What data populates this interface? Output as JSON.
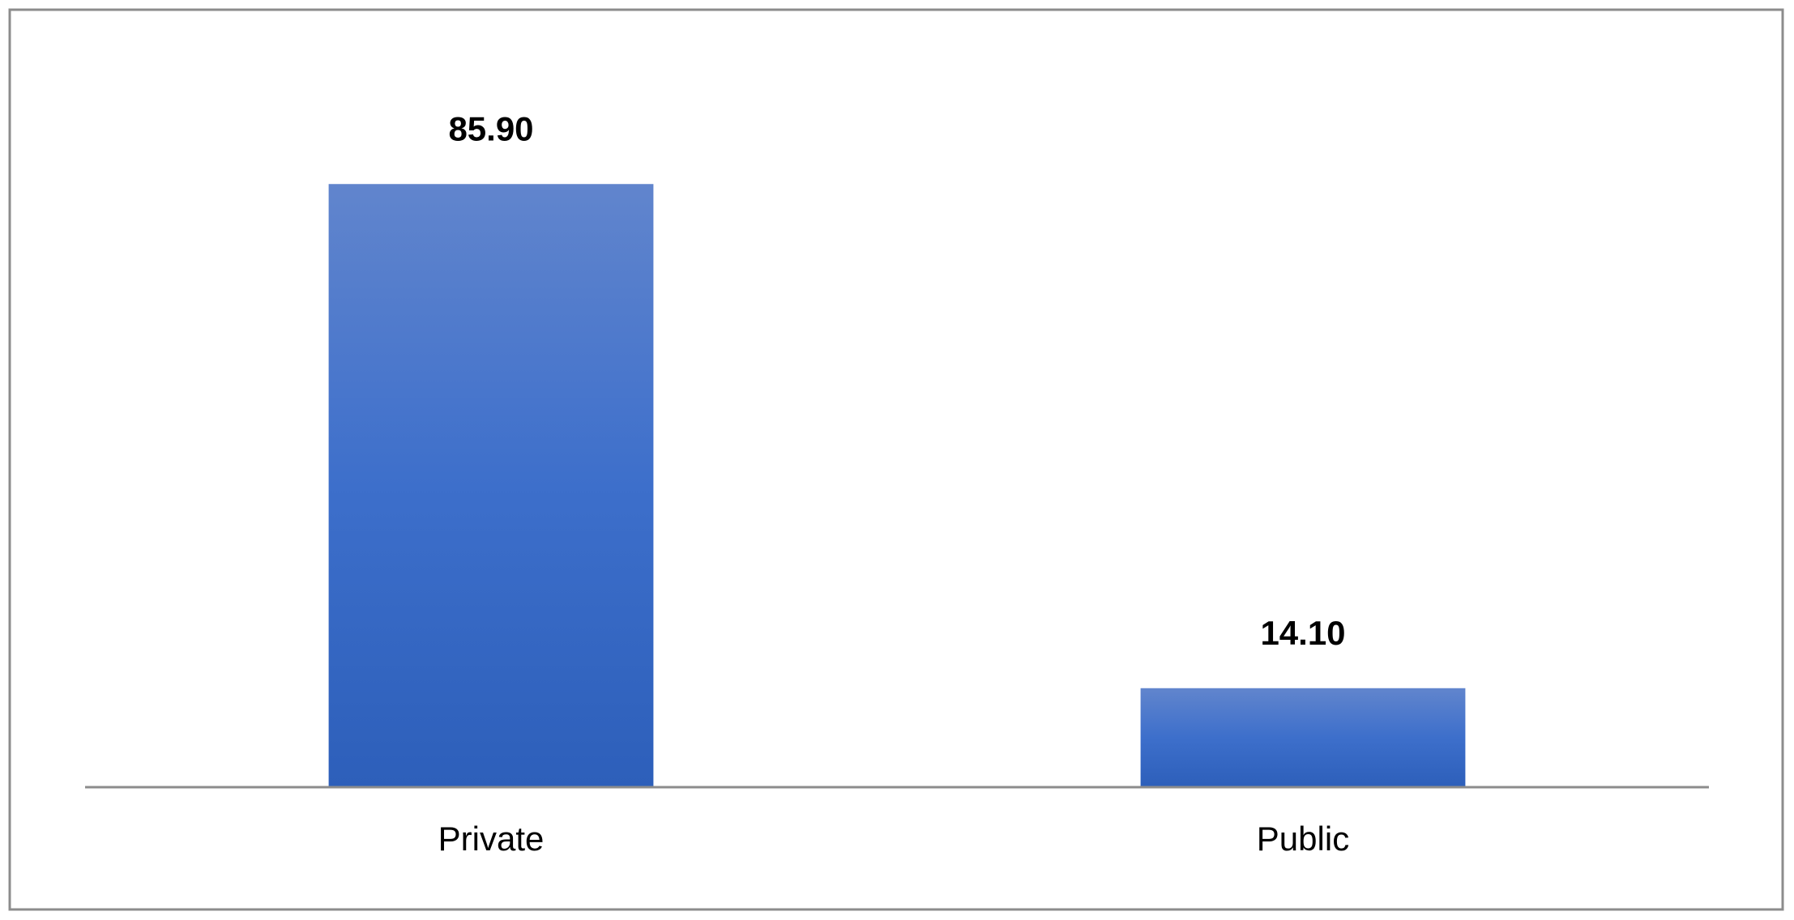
{
  "chart_data": {
    "type": "bar",
    "categories": [
      "Private",
      "Public"
    ],
    "values": [
      85.9,
      14.1
    ],
    "value_labels": [
      "85.90",
      "14.10"
    ],
    "color": "#3a6bc6",
    "ylim": [
      0,
      100
    ]
  }
}
